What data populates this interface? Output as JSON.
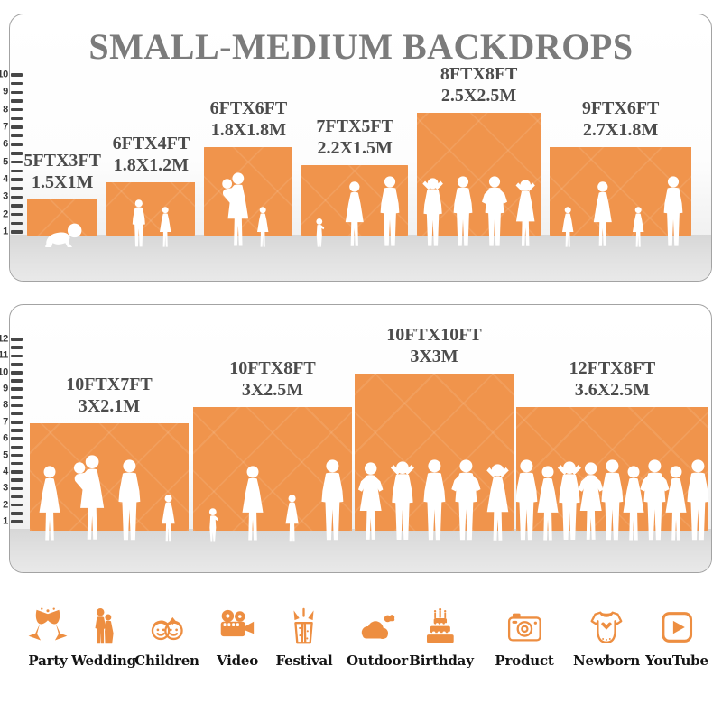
{
  "title": "SMALL-MEDIUM BACKDROPS",
  "colors": {
    "bar_orange": "#F0944C",
    "icon_orange": "#ED8E41",
    "title_gray": "#7B7B7B"
  },
  "chart_data": [
    {
      "type": "bar",
      "panel": "small-medium-top",
      "ylabel": "height (FT ruler)",
      "ylim": [
        0,
        10
      ],
      "ruler_max": 10,
      "bars": [
        {
          "size_ft": "5FTX3FT",
          "size_m": "1.5X1M",
          "width_ft": 5,
          "height_ft": 3,
          "people": [
            "baby"
          ]
        },
        {
          "size_ft": "6FTX4FT",
          "size_m": "1.8X1.2M",
          "width_ft": 6,
          "height_ft": 4,
          "people": [
            "boy",
            "girl"
          ]
        },
        {
          "size_ft": "6FTX6FT",
          "size_m": "1.8X1.8M",
          "width_ft": 6,
          "height_ft": 6,
          "people": [
            "woman-baby",
            "girl"
          ]
        },
        {
          "size_ft": "7FTX5FT",
          "size_m": "2.2X1.5M",
          "width_ft": 7,
          "height_ft": 5,
          "people": [
            "toddler",
            "woman",
            "man"
          ]
        },
        {
          "size_ft": "8FTX8FT",
          "size_m": "2.5X2.5M",
          "width_ft": 8,
          "height_ft": 8,
          "people": [
            "man-head",
            "man",
            "man-hips",
            "woman-head"
          ]
        },
        {
          "size_ft": "9FTX6FT",
          "size_m": "2.7X1.8M",
          "width_ft": 9,
          "height_ft": 6,
          "people": [
            "girl",
            "woman",
            "girl",
            "man"
          ]
        }
      ]
    },
    {
      "type": "bar",
      "panel": "medium-large-bottom",
      "ylabel": "height (FT ruler)",
      "ylim": [
        0,
        12
      ],
      "ruler_max": 12,
      "bars": [
        {
          "size_ft": "10FTX7FT",
          "size_m": "3X2.1M",
          "width_ft": 10,
          "height_ft": 7,
          "people": [
            "woman",
            "woman-baby",
            "man",
            "girl"
          ]
        },
        {
          "size_ft": "10FTX8FT",
          "size_m": "3X2.5M",
          "width_ft": 10,
          "height_ft": 8,
          "people": [
            "toddler",
            "woman",
            "girl",
            "man"
          ]
        },
        {
          "size_ft": "10FTX10FT",
          "size_m": "3X3M",
          "width_ft": 10,
          "height_ft": 10,
          "people": [
            "woman-hips",
            "man-head",
            "man",
            "man-hips",
            "woman-head"
          ]
        },
        {
          "size_ft": "12FTX8FT",
          "size_m": "3.6X2.5M",
          "width_ft": 12,
          "height_ft": 8,
          "people": [
            "man",
            "woman",
            "man-head",
            "woman-hips",
            "man",
            "woman",
            "man-hips",
            "woman",
            "man"
          ]
        }
      ]
    }
  ],
  "categories": [
    {
      "label": "Party",
      "icon": "party"
    },
    {
      "label": "Wedding",
      "icon": "wedding"
    },
    {
      "label": "Children",
      "icon": "children"
    },
    {
      "label": "Video",
      "icon": "video"
    },
    {
      "label": "Festival",
      "icon": "festival"
    },
    {
      "label": "Outdoor",
      "icon": "outdoor"
    },
    {
      "label": "Birthday",
      "icon": "birthday"
    },
    {
      "label": "Product",
      "icon": "product"
    },
    {
      "label": "Newborn",
      "icon": "newborn"
    },
    {
      "label": "YouTube",
      "icon": "youtube"
    }
  ]
}
